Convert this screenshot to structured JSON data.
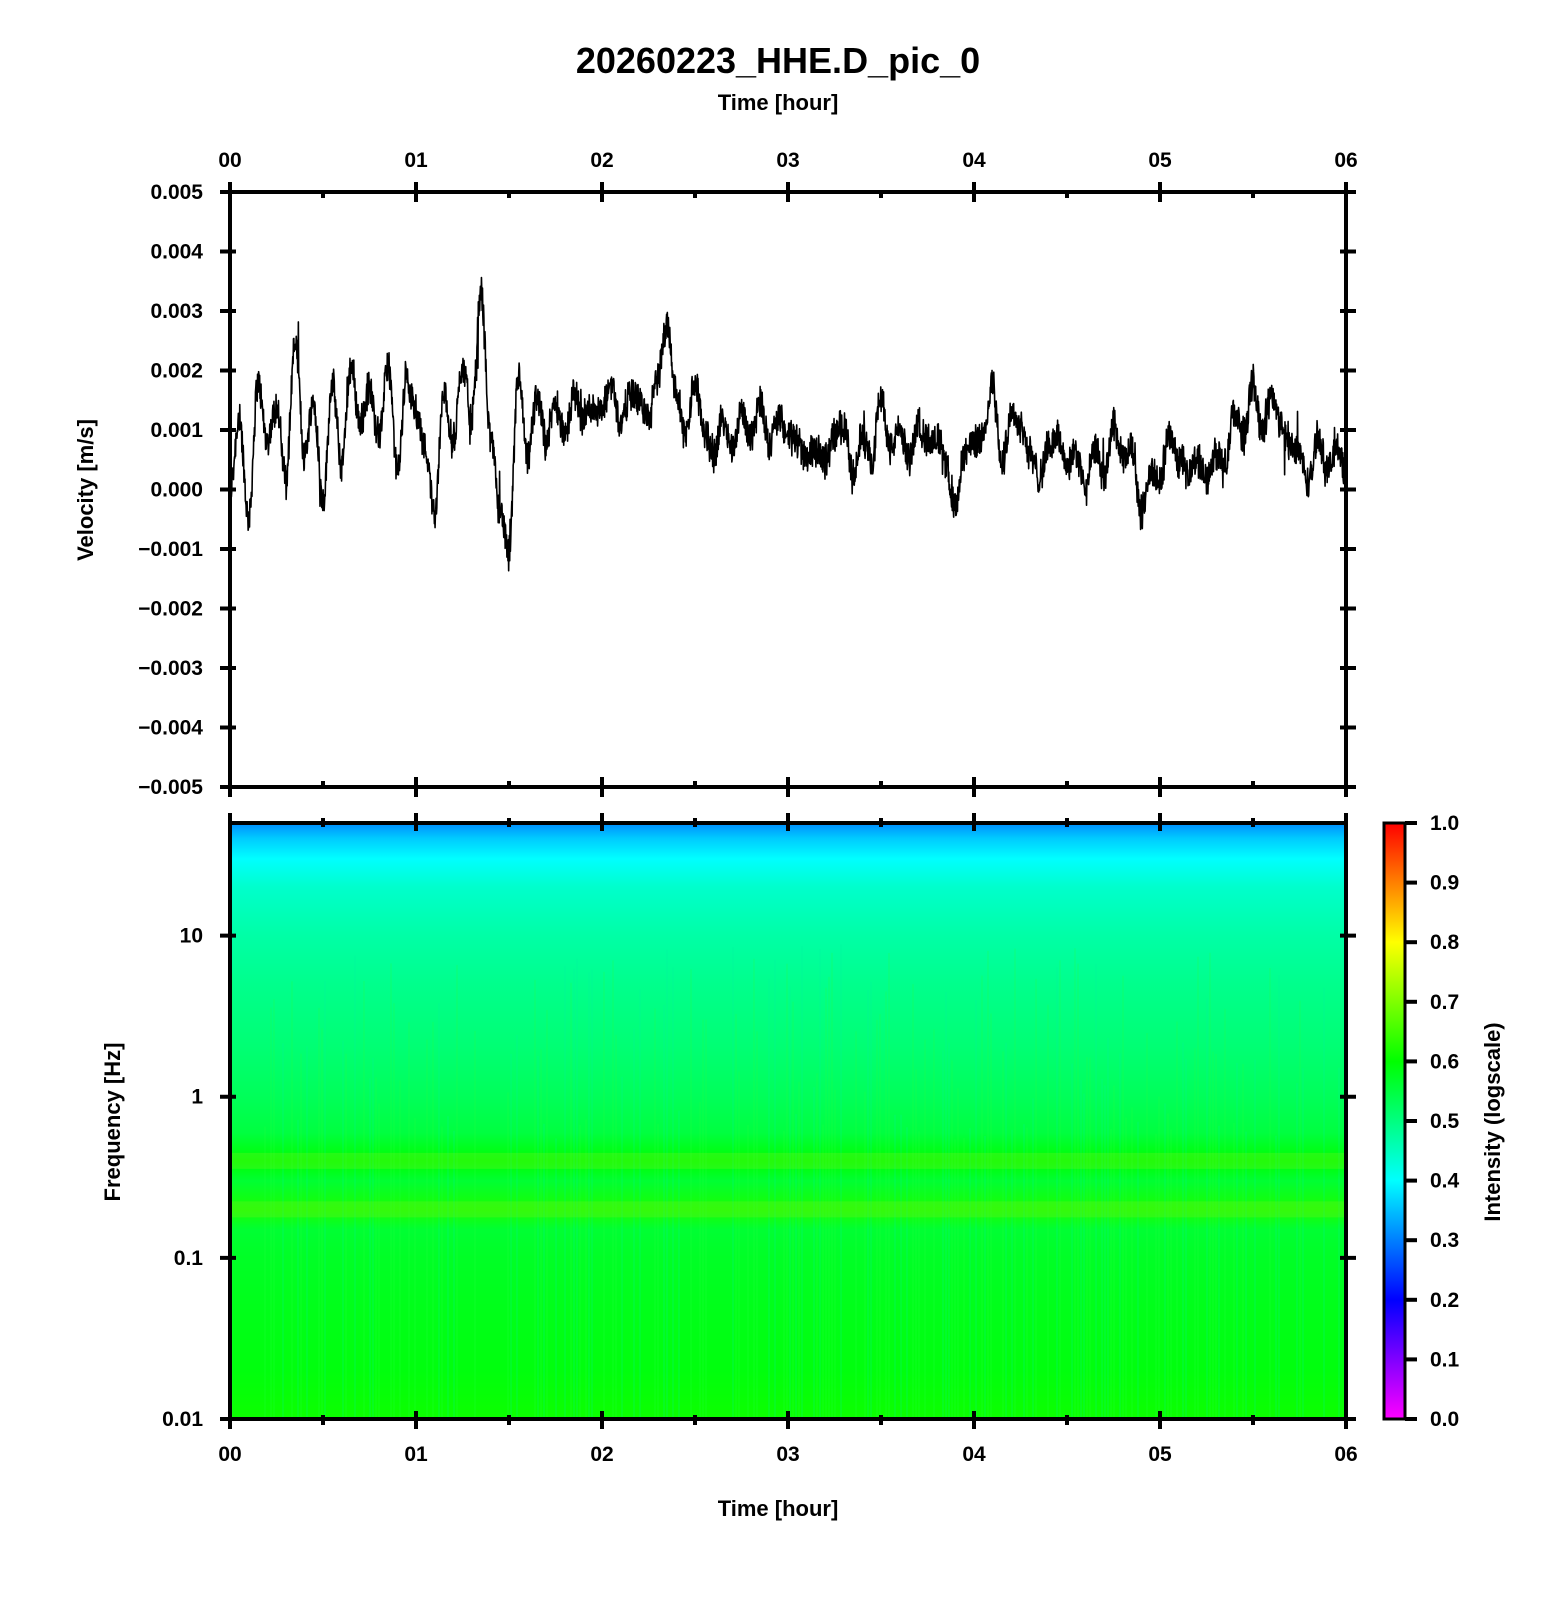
{
  "chart_data": [
    {
      "type": "line",
      "title": "20260223_HHE.D_pic_0",
      "top_xlabel": "Time [hour]",
      "ylabel": "Velocity [m/s]",
      "x_ticks": [
        "00",
        "01",
        "02",
        "03",
        "04",
        "05",
        "06"
      ],
      "y_ticks": [
        "0.005",
        "0.004",
        "0.003",
        "0.002",
        "0.001",
        "0.000",
        "−0.001",
        "−0.002",
        "−0.003",
        "−0.004",
        "−0.005"
      ],
      "xlim": [
        0,
        6
      ],
      "ylim": [
        -0.005,
        0.005
      ],
      "grid": false,
      "line_color": "#000000",
      "series": [
        {
          "x": [
            0.0,
            0.05,
            0.1,
            0.15,
            0.2,
            0.25,
            0.3,
            0.35,
            0.4,
            0.45,
            0.5,
            0.55,
            0.6,
            0.65,
            0.7,
            0.75,
            0.8,
            0.85,
            0.9,
            0.95,
            1.0,
            1.05,
            1.1,
            1.15,
            1.2,
            1.25,
            1.3,
            1.35,
            1.4,
            1.45,
            1.5,
            1.55,
            1.6,
            1.65,
            1.7,
            1.75,
            1.8,
            1.85,
            1.9,
            1.95,
            2.0,
            2.05,
            2.1,
            2.15,
            2.2,
            2.25,
            2.3,
            2.35,
            2.4,
            2.45,
            2.5,
            2.55,
            2.6,
            2.65,
            2.7,
            2.75,
            2.8,
            2.85,
            2.9,
            2.95,
            3.0,
            3.05,
            3.1,
            3.15,
            3.2,
            3.25,
            3.3,
            3.35,
            3.4,
            3.45,
            3.5,
            3.55,
            3.6,
            3.65,
            3.7,
            3.75,
            3.8,
            3.85,
            3.9,
            3.95,
            4.0,
            4.05,
            4.1,
            4.15,
            4.2,
            4.25,
            4.3,
            4.35,
            4.4,
            4.45,
            4.5,
            4.55,
            4.6,
            4.65,
            4.7,
            4.75,
            4.8,
            4.85,
            4.9,
            4.95,
            5.0,
            5.05,
            5.1,
            5.15,
            5.2,
            5.25,
            5.3,
            5.35,
            5.4,
            5.45,
            5.5,
            5.55,
            5.6,
            5.65,
            5.7,
            5.75,
            5.8,
            5.85,
            5.9,
            5.95,
            6.0
          ],
          "y": [
            0.0,
            0.0012,
            -0.0005,
            0.0018,
            0.0008,
            0.0014,
            0.0002,
            0.0025,
            0.0006,
            0.0015,
            -0.0002,
            0.0018,
            0.0004,
            0.0021,
            0.0011,
            0.0017,
            0.0009,
            0.0021,
            0.0003,
            0.0019,
            0.0013,
            0.0007,
            -0.0004,
            0.0016,
            0.0008,
            0.0021,
            0.0012,
            0.0033,
            0.0009,
            -0.0003,
            -0.0011,
            0.0019,
            0.0005,
            0.0016,
            0.0008,
            0.0015,
            0.0009,
            0.0016,
            0.0012,
            0.0014,
            0.0013,
            0.0018,
            0.0011,
            0.0016,
            0.0015,
            0.0012,
            0.0019,
            0.0028,
            0.0016,
            0.0009,
            0.0018,
            0.001,
            0.0006,
            0.0012,
            0.0007,
            0.0013,
            0.0009,
            0.0015,
            0.0008,
            0.0012,
            0.0009,
            0.0008,
            0.0006,
            0.0007,
            0.0005,
            0.0009,
            0.0011,
            0.0002,
            0.0009,
            0.0005,
            0.0016,
            0.0007,
            0.001,
            0.0005,
            0.0011,
            0.0008,
            0.0009,
            0.0004,
            -0.0003,
            0.0006,
            0.0008,
            0.0009,
            0.0018,
            0.0004,
            0.0013,
            0.0011,
            0.0006,
            0.0002,
            0.0007,
            0.0009,
            0.0004,
            0.0006,
            0.0,
            0.0007,
            0.0002,
            0.0011,
            0.0005,
            0.0007,
            -0.0004,
            0.0003,
            0.0001,
            0.0009,
            0.0005,
            0.0003,
            0.0005,
            0.0002,
            0.0006,
            0.0004,
            0.0013,
            0.0009,
            0.0018,
            0.001,
            0.0016,
            0.0011,
            0.0008,
            0.0006,
            0.0001,
            0.0009,
            0.0003,
            0.0007,
            0.0004
          ]
        }
      ]
    },
    {
      "type": "heatmap",
      "xlabel": "Time [hour]",
      "ylabel": "Frequency [Hz]",
      "x_ticks": [
        "00",
        "01",
        "02",
        "03",
        "04",
        "05",
        "06"
      ],
      "y_ticks": [
        "10",
        "1",
        "0.1",
        "0.01"
      ],
      "y_scale": "log",
      "xlim": [
        0,
        6
      ],
      "ylim": [
        0.01,
        50
      ],
      "colorbar": {
        "label": "Intensity (logscale)",
        "ticks": [
          "1.0",
          "0.9",
          "0.8",
          "0.7",
          "0.6",
          "0.5",
          "0.4",
          "0.3",
          "0.2",
          "0.1",
          "0.0"
        ],
        "range": [
          0.0,
          1.0
        ]
      },
      "intensity_profile": {
        "frequency_hz": [
          50,
          40,
          30,
          20,
          10,
          5,
          2,
          1,
          0.6,
          0.4,
          0.3,
          0.2,
          0.15,
          0.1,
          0.05,
          0.02,
          0.01
        ],
        "intensity": [
          0.31,
          0.36,
          0.4,
          0.44,
          0.47,
          0.49,
          0.51,
          0.53,
          0.55,
          0.6,
          0.56,
          0.62,
          0.56,
          0.57,
          0.58,
          0.59,
          0.61
        ]
      }
    }
  ]
}
